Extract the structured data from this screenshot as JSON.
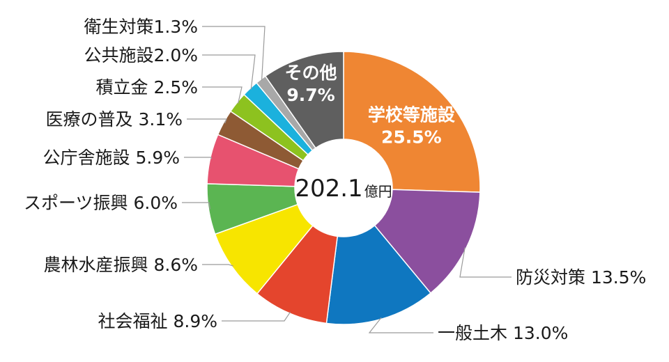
{
  "chart_data": {
    "type": "pie",
    "subtype": "donut",
    "center": {
      "value": "202.1",
      "unit": "億円"
    },
    "slices": [
      {
        "name": "学校等施設",
        "value": 25.5,
        "label": "25.5%",
        "color": "#EF8633"
      },
      {
        "name": "防災対策",
        "value": 13.5,
        "label": "13.5%",
        "color": "#8B4F9E"
      },
      {
        "name": "一般土木",
        "value": 13.0,
        "label": "13.0%",
        "color": "#0F77C0"
      },
      {
        "name": "社会福祉",
        "value": 8.9,
        "label": "8.9%",
        "color": "#E4452D"
      },
      {
        "name": "農林水産振興",
        "value": 8.6,
        "label": "8.6%",
        "color": "#F7E500"
      },
      {
        "name": "スポーツ振興",
        "value": 6.0,
        "label": "6.0%",
        "color": "#5BB552"
      },
      {
        "name": "公庁舎施設",
        "value": 5.9,
        "label": "5.9%",
        "color": "#E7526F"
      },
      {
        "name": "医療の普及",
        "value": 3.1,
        "label": "3.1%",
        "color": "#8E5A34"
      },
      {
        "name": "積立金",
        "value": 2.5,
        "label": "2.5%",
        "color": "#8DC21F"
      },
      {
        "name": "公共施設",
        "value": 2.0,
        "label": "2.0%",
        "color": "#1BB1DD"
      },
      {
        "name": "衛生対策",
        "value": 1.3,
        "label": "1.3%",
        "color": "#A8A8A8"
      },
      {
        "name": "その他",
        "value": 9.7,
        "label": "9.7%",
        "color": "#5F5F5F"
      }
    ],
    "labels": {
      "inside": [
        "学校等施設",
        "その他"
      ],
      "callouts": [
        {
          "slice": "衛生対策",
          "text": "衛生対策1.3%"
        },
        {
          "slice": "公共施設",
          "text": "公共施設2.0%"
        },
        {
          "slice": "積立金",
          "text": "積立金 2.5%"
        },
        {
          "slice": "医療の普及",
          "text": "医療の普及 3.1%"
        },
        {
          "slice": "公庁舎施設",
          "text": "公庁舎施設 5.9%"
        },
        {
          "slice": "スポーツ振興",
          "text": "スポーツ振興 6.0%"
        },
        {
          "slice": "農林水産振興",
          "text": "農林水産振興 8.6%"
        },
        {
          "slice": "社会福祉",
          "text": "社会福祉 8.9%"
        },
        {
          "slice": "防災対策",
          "text": "防災対策 13.5%"
        },
        {
          "slice": "一般土木",
          "text": "一般土木 13.0%"
        }
      ]
    },
    "legend": "none",
    "start_angle": "12 o'clock",
    "direction": "clockwise"
  }
}
